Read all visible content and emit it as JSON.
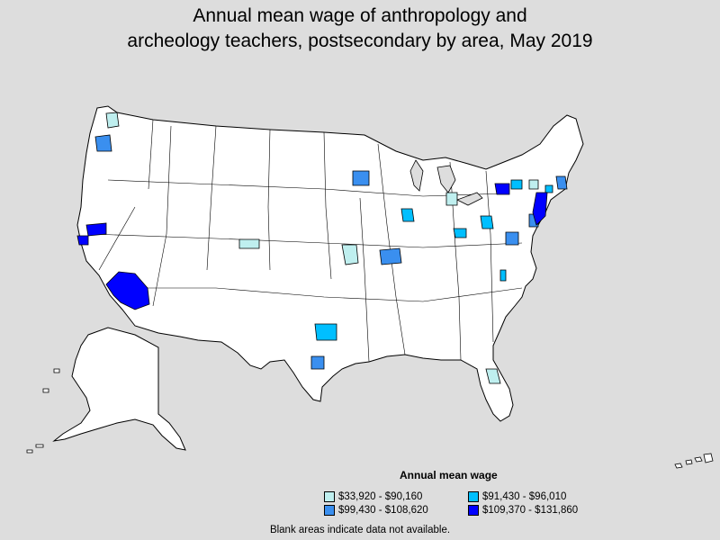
{
  "title_line1": "Annual mean wage of anthropology and",
  "title_line2": "archeology teachers, postsecondary by area, May 2019",
  "legend": {
    "title": "Annual mean wage",
    "items": [
      {
        "label": "$33,920 - $90,160",
        "color": "#bfefef"
      },
      {
        "label": "$91,430 - $96,010",
        "color": "#00bfff"
      },
      {
        "label": "$99,430 - $108,620",
        "color": "#3a8fef"
      },
      {
        "label": "$109,370 - $131,860",
        "color": "#0000ff"
      }
    ]
  },
  "footnote": "Blank areas indicate data not available.",
  "colors": {
    "background": "#dddddd",
    "land": "#ffffff",
    "border": "#000000",
    "tier1": "#bfefef",
    "tier2": "#00bfff",
    "tier3": "#3a8fef",
    "tier4": "#0000ff"
  },
  "map": {
    "region": "United States",
    "unit": "metropolitan and nonmetropolitan areas"
  }
}
